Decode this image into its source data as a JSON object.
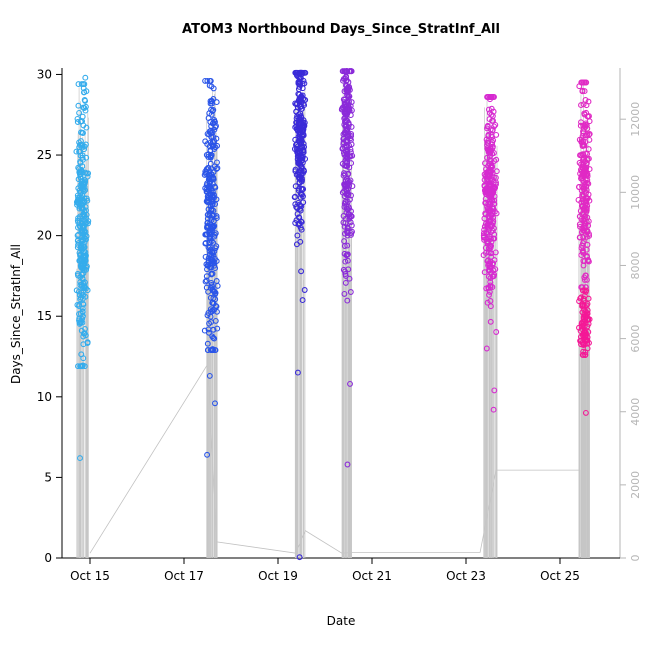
{
  "chart_data": {
    "type": "scatter",
    "title": "ATOM3 Northbound Days_Since_StratInf_All",
    "xlabel": "Date",
    "ylabel": "Days_Since_StratInf_All",
    "grid": false,
    "legend": "none",
    "point_style": {
      "shape": "open-circle",
      "radius": 2.4
    },
    "y_axis": {
      "ticks": [
        0,
        5,
        10,
        15,
        20,
        25,
        30
      ],
      "range": [
        0,
        30.4
      ],
      "color": "#000000"
    },
    "right_axis": {
      "ticks": [
        0,
        2000,
        4000,
        6000,
        8000,
        10000,
        12000
      ],
      "range": [
        0,
        13400
      ],
      "color": "#b6b6b6"
    },
    "x_axis": {
      "ticks": [
        {
          "label": "Oct 15",
          "day": 15
        },
        {
          "label": "Oct 17",
          "day": 17
        },
        {
          "label": "Oct 19",
          "day": 19
        },
        {
          "label": "Oct 21",
          "day": 21
        },
        {
          "label": "Oct 23",
          "day": 23
        },
        {
          "label": "Oct 25",
          "day": 25
        }
      ]
    },
    "clusters": [
      {
        "id": "oct15",
        "color": "#35ACEC",
        "x_center": 14.84,
        "x_spread": 0.14,
        "n": 300,
        "y_mean": 20.6,
        "y_sd": 4.0,
        "y_min": 11.9,
        "y_max": 29.4,
        "outliers": [
          6.2,
          29.8,
          28.9
        ]
      },
      {
        "id": "oct17",
        "color": "#2A55E8",
        "x_center": 17.58,
        "x_spread": 0.15,
        "n": 300,
        "y_mean": 21.2,
        "y_sd": 4.2,
        "y_min": 12.9,
        "y_max": 29.6,
        "outliers": [
          6.4,
          9.6,
          11.3
        ]
      },
      {
        "id": "oct19",
        "color": "#3A2BD8",
        "x_center": 19.47,
        "x_spread": 0.12,
        "n": 260,
        "y_mean": 26.0,
        "y_sd": 2.9,
        "y_min": 15.2,
        "y_max": 30.1,
        "outliers": [
          11.5,
          0.05,
          16.0
        ]
      },
      {
        "id": "oct20",
        "color": "#8B2BD9",
        "x_center": 20.47,
        "x_spread": 0.12,
        "n": 260,
        "y_mean": 25.2,
        "y_sd": 3.3,
        "y_min": 14.6,
        "y_max": 30.2,
        "outliers": [
          10.8,
          5.8
        ]
      },
      {
        "id": "oct23",
        "color": "#D62AD0",
        "x_center": 23.52,
        "x_spread": 0.16,
        "n": 290,
        "y_mean": 22.4,
        "y_sd": 3.0,
        "y_min": 12.9,
        "y_max": 28.6,
        "outliers": [
          9.2,
          10.4,
          13.0
        ]
      },
      {
        "id": "oct25-upper",
        "color": "#E02AC4",
        "x_center": 25.52,
        "x_spread": 0.13,
        "n": 220,
        "y_mean": 23.2,
        "y_sd": 3.1,
        "y_min": 16.8,
        "y_max": 29.5,
        "outliers": []
      },
      {
        "id": "oct25-lower",
        "color": "#F41896",
        "x_center": 25.52,
        "x_spread": 0.12,
        "n": 90,
        "y_mean": 14.4,
        "y_sd": 1.2,
        "y_min": 12.6,
        "y_max": 16.6,
        "outliers": [
          9.0
        ]
      }
    ],
    "spike_lines": {
      "color": "#c6c6c6",
      "per_cluster": 30,
      "width": 0.7
    },
    "connector_line": {
      "color": "#c2c2c2",
      "width": 0.8,
      "points": [
        [
          15.0,
          0.3
        ],
        [
          17.5,
          12.0
        ],
        [
          17.7,
          1.0
        ],
        [
          19.38,
          0.3
        ],
        [
          19.58,
          1.7
        ],
        [
          20.36,
          0.3
        ],
        [
          20.6,
          0.35
        ],
        [
          23.3,
          0.35
        ],
        [
          23.64,
          5.45
        ],
        [
          25.42,
          5.45
        ],
        [
          25.42,
          0.3
        ]
      ]
    }
  }
}
